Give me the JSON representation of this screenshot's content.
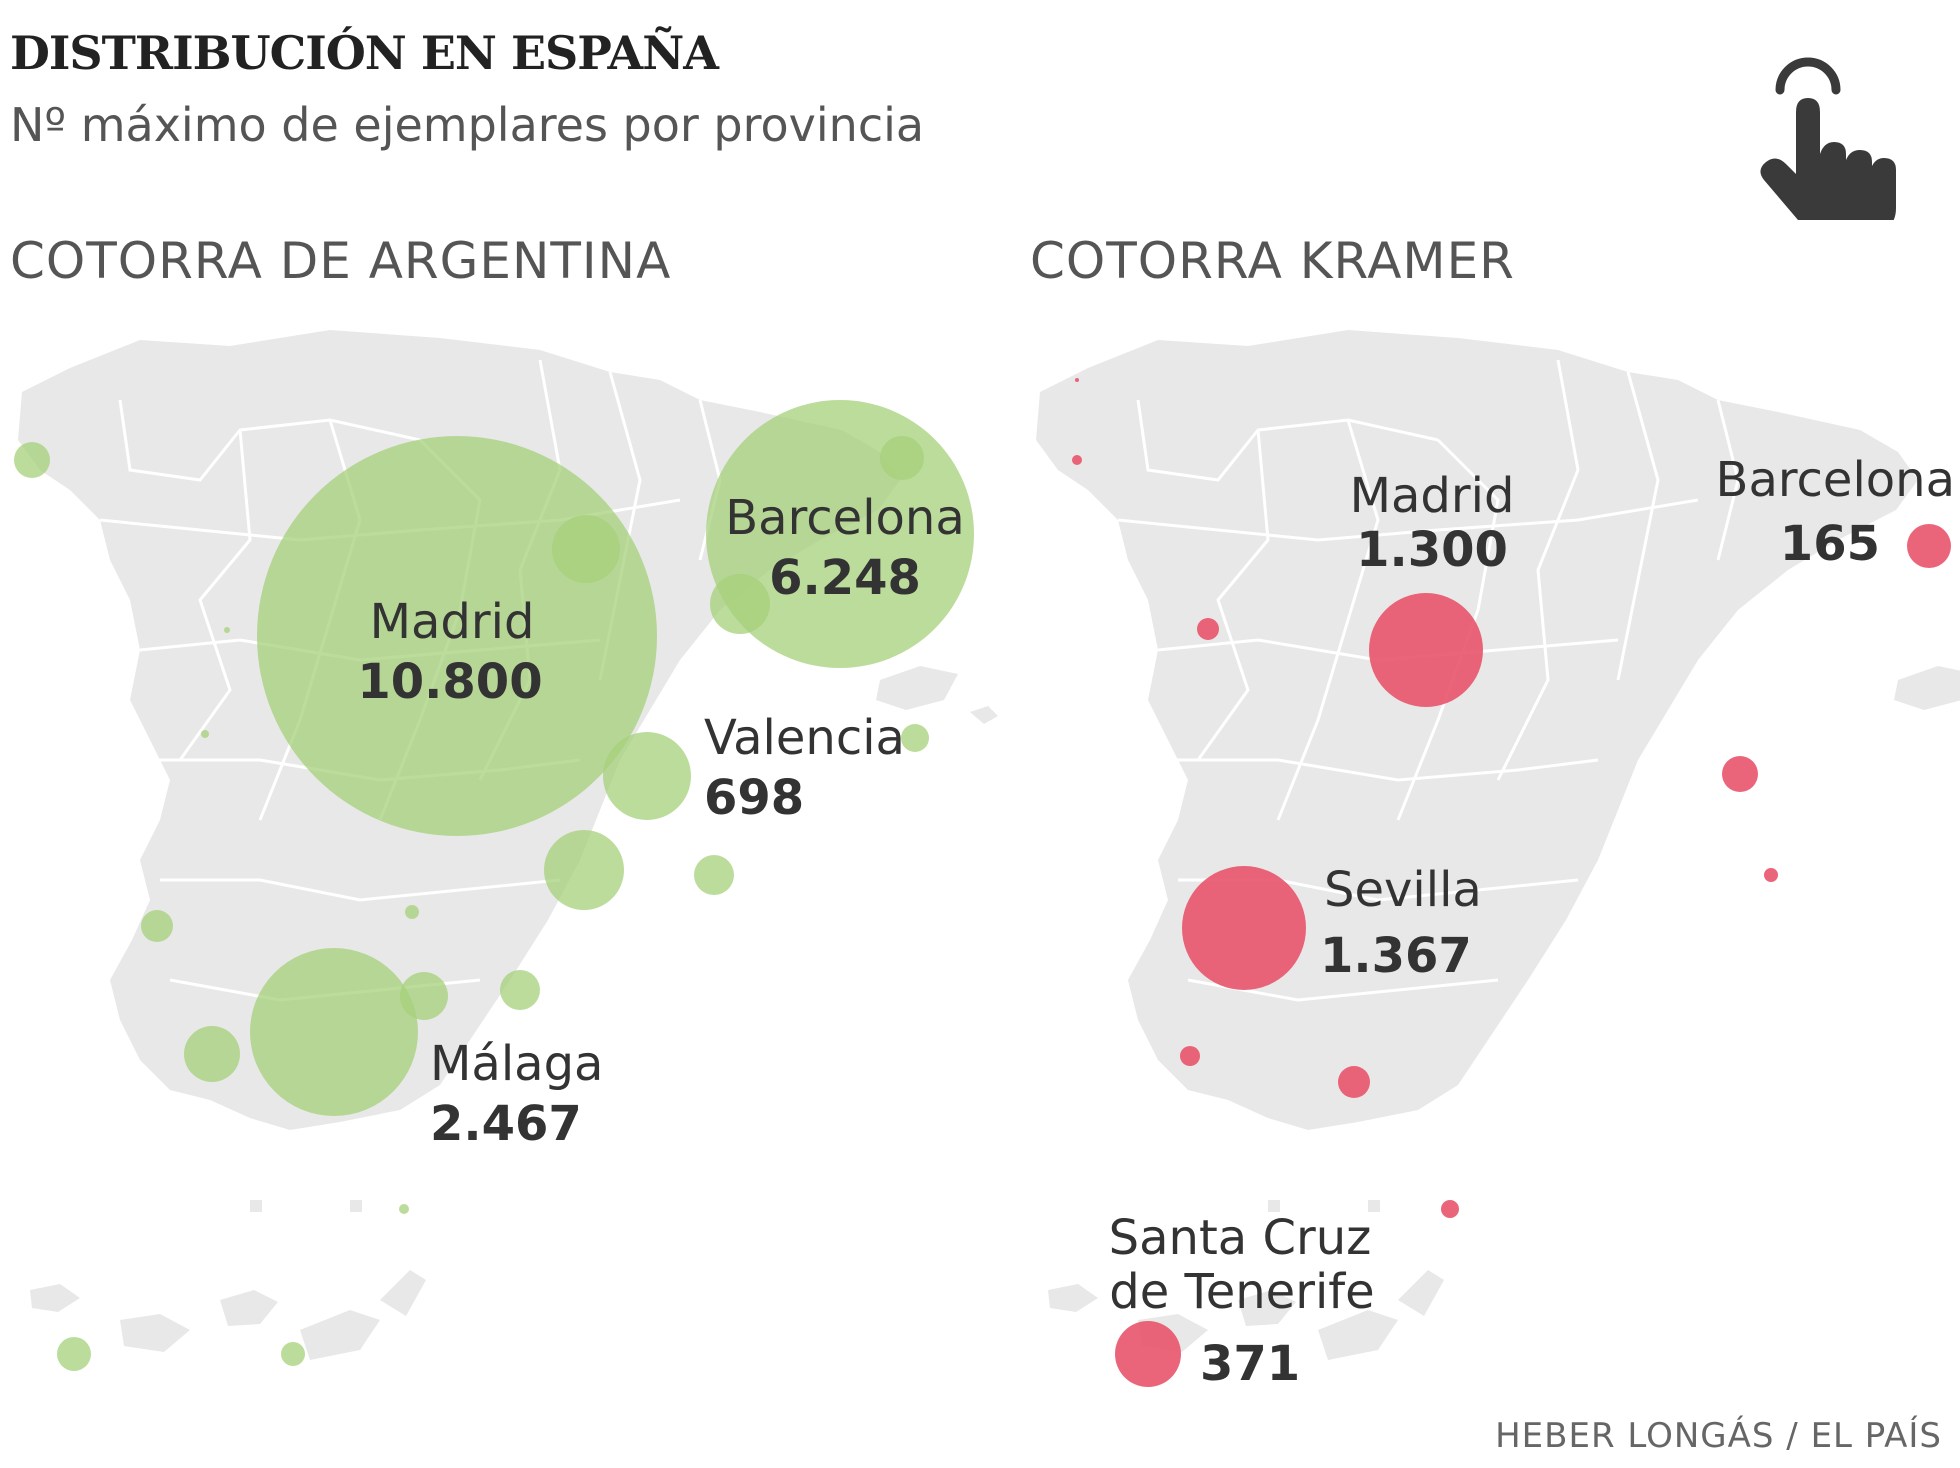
{
  "header": {
    "title": "DISTRIBUCIÓN EN ESPAÑA",
    "subtitle": "Nº máximo de ejemplares por provincia",
    "icon": "pointing-hand-icon"
  },
  "maps": [
    {
      "title": "COTORRA DE ARGENTINA",
      "color": "#a6d07a",
      "labels": [
        {
          "name": "Madrid",
          "value": "10.800"
        },
        {
          "name": "Barcelona",
          "value": "6.248"
        },
        {
          "name": "Valencia",
          "value": "698"
        },
        {
          "name": "Málaga",
          "value": "2.467"
        }
      ]
    },
    {
      "title": "COTORRA KRAMER",
      "color": "#e8546a",
      "labels": [
        {
          "name": "Madrid",
          "value": "1.300"
        },
        {
          "name": "Barcelona",
          "value": "165"
        },
        {
          "name": "Sevilla",
          "value": "1.367"
        },
        {
          "name": "Santa Cruz de Tenerife",
          "line1": "Santa Cruz",
          "line2": "de Tenerife",
          "value": "371"
        }
      ]
    }
  ],
  "credit": "HEBER LONGÁS / EL PAÍS"
}
